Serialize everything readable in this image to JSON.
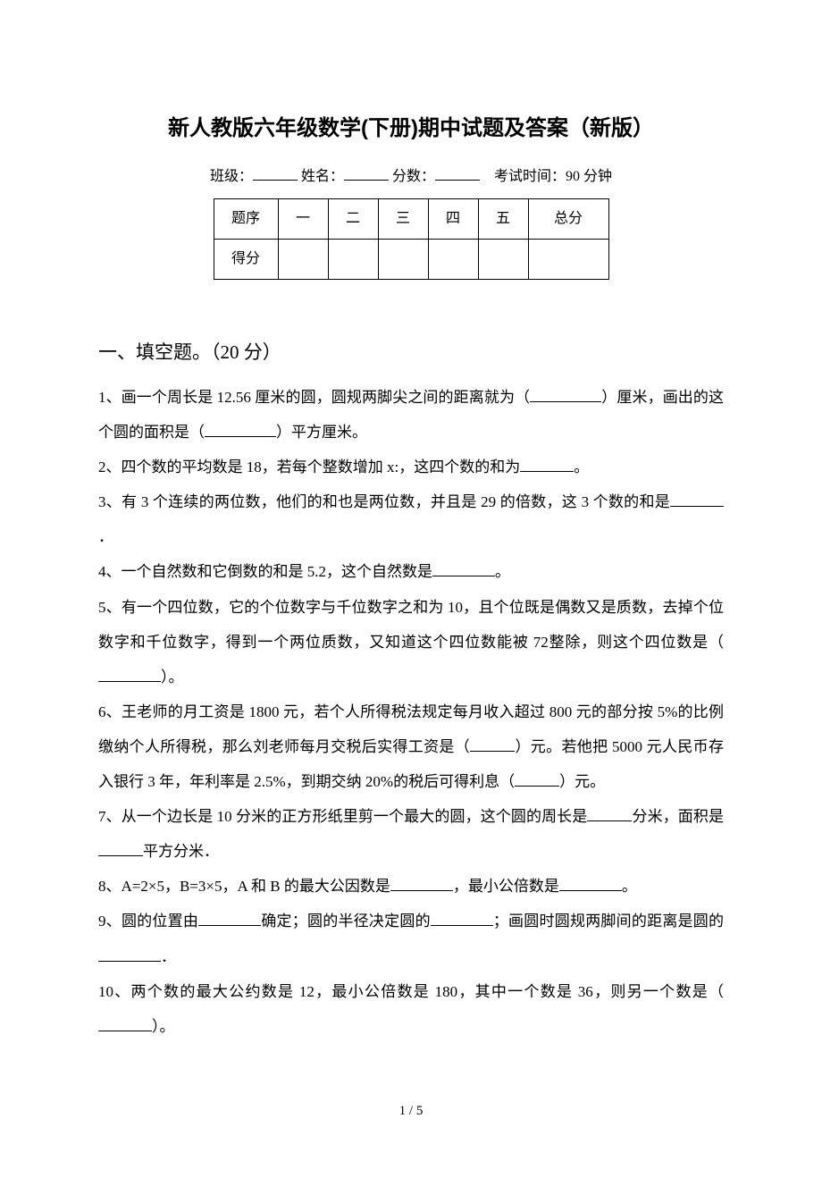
{
  "title": "新人教版六年级数学(下册)期中试题及答案（新版）",
  "header": {
    "class_label": "班级：",
    "name_label": "姓名：",
    "score_label": "分数：",
    "exam_time_label": "考试时间：90 分钟"
  },
  "score_table": {
    "row1": [
      "题序",
      "一",
      "二",
      "三",
      "四",
      "五",
      "总分"
    ],
    "row2_label": "得分"
  },
  "section1": {
    "heading": "一、填空题。（20 分）",
    "q1_a": "1、画一个周长是 12.56 厘米的圆，圆规两脚尖之间的距离就为（",
    "q1_b": "）厘米，画出的这个圆的面积是（",
    "q1_c": "）平方厘米。",
    "q2_a": "2、四个数的平均数是 18，若每个整数增加 x:，这四个数的和为",
    "q2_b": "。",
    "q3_a": "3、有 3 个连续的两位数，他们的和也是两位数，并且是 29 的倍数，这 3 个数的和是",
    "q3_b": "．",
    "q4_a": "4、一个自然数和它倒数的和是 5.2，这个自然数是",
    "q4_b": "。",
    "q5_a": "5、有一个四位数，它的个位数字与千位数字之和为 10，且个位既是偶数又是质数，去掉个位数字和千位数字，得到一个两位质数，又知道这个四位数能被 72整除，则这个四位数是（",
    "q5_b": "）。",
    "q6_a": "6、王老师的月工资是 1800 元，若个人所得税法规定每月收入超过 800 元的部分按 5%的比例缴纳个人所得税，那么刘老师每月交税后实得工资是（",
    "q6_b": "）元。若他把 5000 元人民币存入银行 3 年，年利率是 2.5%，到期交纳 20%的税后可得利息（",
    "q6_c": "）元。",
    "q7_a": "7、从一个边长是 10 分米的正方形纸里剪一个最大的圆，这个圆的周长是",
    "q7_b": "分米，面积是",
    "q7_c": "平方分米．",
    "q8_a": "8、A=2×5，B=3×5，A 和 B 的最大公因数是",
    "q8_b": "，最小公倍数是",
    "q8_c": "。",
    "q9_a": "9、圆的位置由",
    "q9_b": "确定；圆的半径决定圆的",
    "q9_c": "；画圆时圆规两脚间的距离是圆的",
    "q9_d": "．",
    "q10_a": "10、两个数的最大公约数是 12，最小公倍数是 180，其中一个数是 36，则另一个数是（",
    "q10_b": "）。"
  },
  "page_number": "1 / 5"
}
